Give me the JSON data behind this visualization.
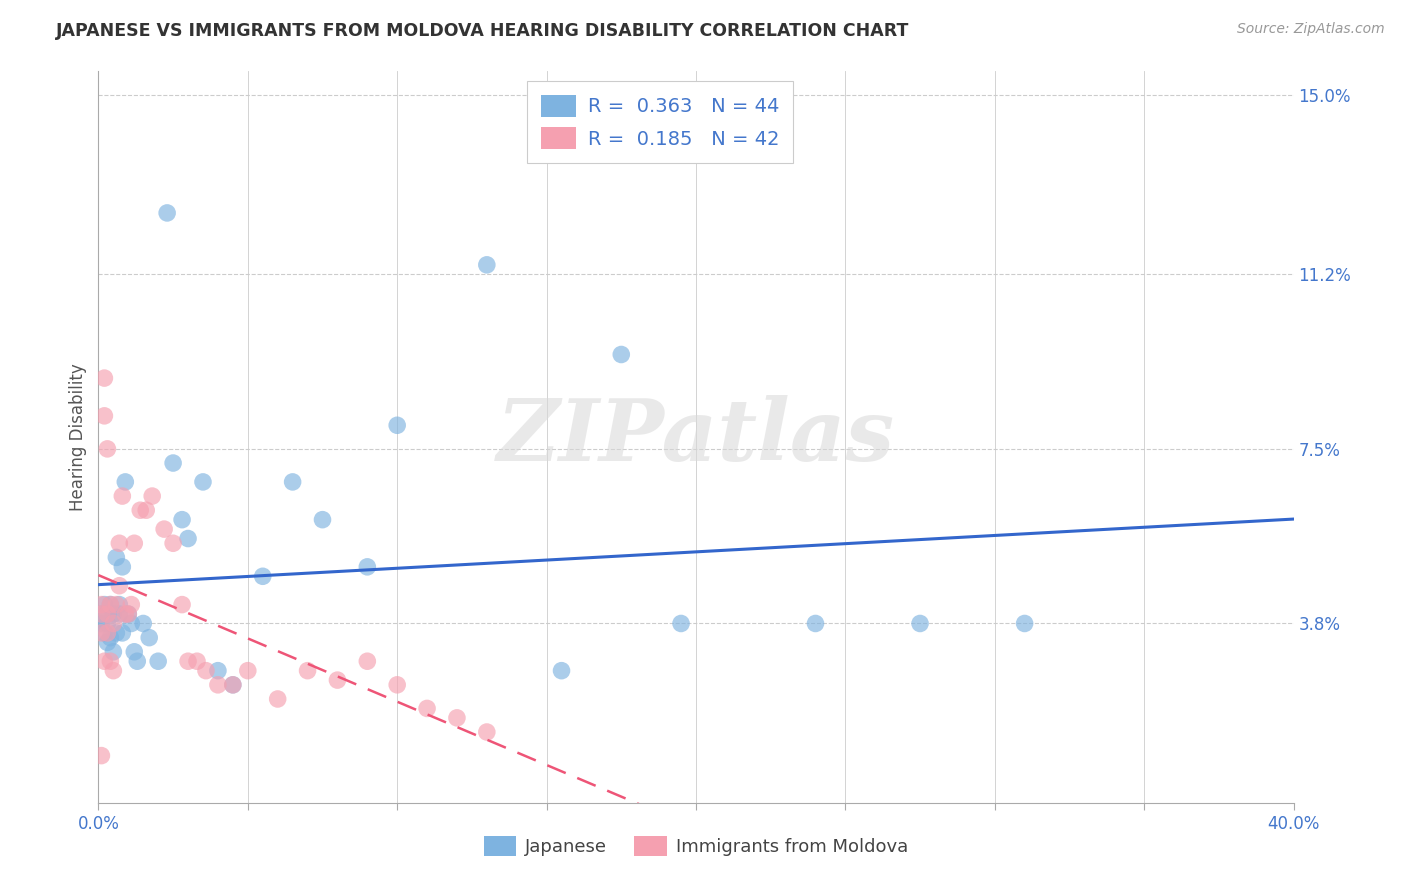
{
  "title": "JAPANESE VS IMMIGRANTS FROM MOLDOVA HEARING DISABILITY CORRELATION CHART",
  "source": "Source: ZipAtlas.com",
  "ylabel": "Hearing Disability",
  "xlim": [
    0.0,
    0.4
  ],
  "ylim": [
    0.0,
    0.155
  ],
  "xtick_positions": [
    0.0,
    0.05,
    0.1,
    0.15,
    0.2,
    0.25,
    0.3,
    0.35,
    0.4
  ],
  "xtick_labels": [
    "0.0%",
    "",
    "",
    "",
    "",
    "",
    "",
    "",
    "40.0%"
  ],
  "ytick_right_positions": [
    0.038,
    0.075,
    0.112,
    0.15
  ],
  "ytick_right_labels": [
    "3.8%",
    "7.5%",
    "11.2%",
    "15.0%"
  ],
  "grid_color": "#cccccc",
  "bg_color": "#ffffff",
  "blue_scatter_color": "#7eb3e0",
  "pink_scatter_color": "#f5a0b0",
  "blue_line_color": "#3366cc",
  "pink_line_color": "#ee5577",
  "text_color": "#4477cc",
  "label_color": "#555555",
  "legend_R_blue": "0.363",
  "legend_N_blue": "44",
  "legend_R_pink": "0.185",
  "legend_N_pink": "42",
  "watermark": "ZIPatlas",
  "japanese_x": [
    0.001,
    0.001,
    0.002,
    0.002,
    0.003,
    0.003,
    0.003,
    0.004,
    0.004,
    0.005,
    0.005,
    0.006,
    0.006,
    0.007,
    0.007,
    0.008,
    0.008,
    0.009,
    0.01,
    0.011,
    0.012,
    0.013,
    0.015,
    0.017,
    0.02,
    0.023,
    0.025,
    0.028,
    0.03,
    0.035,
    0.04,
    0.045,
    0.055,
    0.065,
    0.075,
    0.09,
    0.1,
    0.13,
    0.155,
    0.175,
    0.195,
    0.24,
    0.275,
    0.31
  ],
  "japanese_y": [
    0.04,
    0.038,
    0.036,
    0.042,
    0.04,
    0.034,
    0.038,
    0.042,
    0.035,
    0.04,
    0.032,
    0.052,
    0.036,
    0.042,
    0.04,
    0.05,
    0.036,
    0.068,
    0.04,
    0.038,
    0.032,
    0.03,
    0.038,
    0.035,
    0.03,
    0.125,
    0.072,
    0.06,
    0.056,
    0.068,
    0.028,
    0.025,
    0.048,
    0.068,
    0.06,
    0.05,
    0.08,
    0.114,
    0.028,
    0.095,
    0.038,
    0.038,
    0.038,
    0.038
  ],
  "moldova_x": [
    0.001,
    0.001,
    0.001,
    0.001,
    0.002,
    0.002,
    0.002,
    0.003,
    0.003,
    0.003,
    0.004,
    0.004,
    0.005,
    0.005,
    0.006,
    0.007,
    0.007,
    0.008,
    0.009,
    0.01,
    0.011,
    0.012,
    0.014,
    0.016,
    0.018,
    0.022,
    0.025,
    0.028,
    0.03,
    0.033,
    0.036,
    0.04,
    0.045,
    0.05,
    0.06,
    0.07,
    0.08,
    0.09,
    0.1,
    0.11,
    0.12,
    0.13
  ],
  "moldova_y": [
    0.04,
    0.036,
    0.042,
    0.01,
    0.09,
    0.082,
    0.03,
    0.075,
    0.04,
    0.036,
    0.042,
    0.03,
    0.038,
    0.028,
    0.042,
    0.055,
    0.046,
    0.065,
    0.04,
    0.04,
    0.042,
    0.055,
    0.062,
    0.062,
    0.065,
    0.058,
    0.055,
    0.042,
    0.03,
    0.03,
    0.028,
    0.025,
    0.025,
    0.028,
    0.022,
    0.028,
    0.026,
    0.03,
    0.025,
    0.02,
    0.018,
    0.015
  ]
}
